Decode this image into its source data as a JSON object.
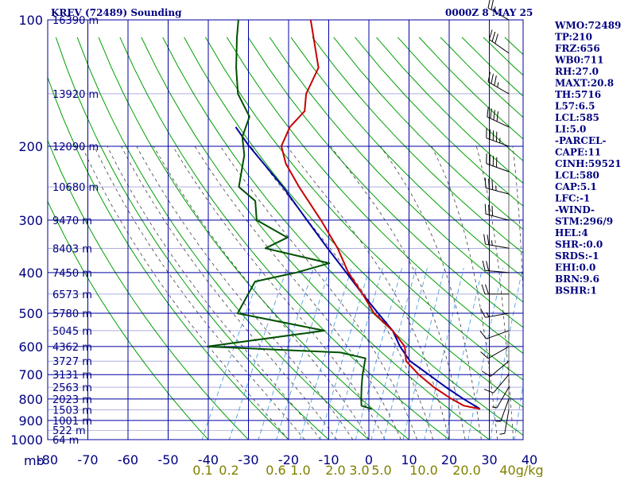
{
  "header": {
    "station": "KREV (72489) Sounding",
    "time": "0000Z  8 MAY 25"
  },
  "indices": [
    "WMO:72489",
    "TP:210",
    "FRZ:656",
    "WB0:711",
    "RH:27.0",
    "MAXT:20.8",
    "TH:5716",
    "L57:6.5",
    "LCL:585",
    "LI:5.0",
    "-PARCEL-",
    "CAPE:11",
    "CINH:59521",
    "LCL:580",
    "CAP:5.1",
    "LFC:-1",
    "-WIND-",
    "STM:296/9",
    "HEL:4",
    "SHR-:0.0",
    "SRDS:-1",
    "EHI:0.0",
    "BRN:9.6",
    "BSHR:1"
  ],
  "colors": {
    "grid": "#0000a0",
    "dry_adiabat": "#00a000",
    "moist_adiabat": "#404040",
    "mixing_ratio": "#3c96dc",
    "temperature": "#c80000",
    "dewpoint": "#005000",
    "parcel": "#0000a0",
    "labels": "#000080",
    "mixing_labels": "#808000"
  },
  "chart_data": {
    "type": "skew-t",
    "pressure_levels": [
      100,
      200,
      300,
      400,
      500,
      600,
      700,
      800,
      900,
      1000
    ],
    "pressure_tick_labels": [
      "100",
      "200",
      "300",
      "400",
      "500",
      "600",
      "700",
      "800",
      "900",
      "1000"
    ],
    "x_axis_unit_label": "mb",
    "temperature_ticks": [
      -80,
      -70,
      -60,
      -50,
      -40,
      -30,
      -20,
      -10,
      0,
      10,
      20,
      30,
      40
    ],
    "temperature_tick_labels": [
      "-80",
      "-70",
      "-60",
      "-50",
      "-40",
      "-30",
      "-20",
      "-10",
      "0",
      "10",
      "20",
      "30",
      "40"
    ],
    "mixing_ratio_labels": [
      "0.1",
      "0.2",
      "0.6",
      "1.0",
      "2.0",
      "3.0",
      "5.0",
      "10.0",
      "20.0",
      "40g/kg"
    ],
    "height_labels": [
      {
        "p": 100,
        "label": "16390 m"
      },
      {
        "p": 150,
        "label": "13920 m"
      },
      {
        "p": 200,
        "label": "12090 m"
      },
      {
        "p": 250,
        "label": "10680 m"
      },
      {
        "p": 300,
        "label": "9470 m"
      },
      {
        "p": 350,
        "label": "8403 m"
      },
      {
        "p": 400,
        "label": "7450 m"
      },
      {
        "p": 450,
        "label": "6573 m"
      },
      {
        "p": 500,
        "label": "5780 m"
      },
      {
        "p": 550,
        "label": "5045 m"
      },
      {
        "p": 600,
        "label": "4362 m"
      },
      {
        "p": 650,
        "label": "3727 m"
      },
      {
        "p": 700,
        "label": "3131 m"
      },
      {
        "p": 750,
        "label": "2563 m"
      },
      {
        "p": 800,
        "label": "2023 m"
      },
      {
        "p": 850,
        "label": "1503 m"
      },
      {
        "p": 900,
        "label": "1001 m"
      },
      {
        "p": 950,
        "label": "522 m"
      },
      {
        "p": 1000,
        "label": "64 m"
      }
    ],
    "temperature_profile": [
      {
        "p": 845,
        "t": 23.5
      },
      {
        "p": 830,
        "t": 19
      },
      {
        "p": 800,
        "t": 15
      },
      {
        "p": 750,
        "t": 9
      },
      {
        "p": 700,
        "t": 3.5
      },
      {
        "p": 650,
        "t": -1.5
      },
      {
        "p": 600,
        "t": -3.8
      },
      {
        "p": 550,
        "t": -9
      },
      {
        "p": 500,
        "t": -16
      },
      {
        "p": 450,
        "t": -21.5
      },
      {
        "p": 400,
        "t": -28
      },
      {
        "p": 350,
        "t": -34
      },
      {
        "p": 300,
        "t": -42
      },
      {
        "p": 250,
        "t": -52
      },
      {
        "p": 220,
        "t": -58.5
      },
      {
        "p": 200,
        "t": -62
      },
      {
        "p": 180,
        "t": -62.5
      },
      {
        "p": 165,
        "t": -61
      },
      {
        "p": 150,
        "t": -63
      },
      {
        "p": 130,
        "t": -63.5
      },
      {
        "p": 100,
        "t": -72
      }
    ],
    "dewpoint_profile": [
      {
        "p": 845,
        "t": -3.5
      },
      {
        "p": 830,
        "t": -6.5
      },
      {
        "p": 800,
        "t": -7.5
      },
      {
        "p": 750,
        "t": -9
      },
      {
        "p": 700,
        "t": -10.5
      },
      {
        "p": 640,
        "t": -12
      },
      {
        "p": 620,
        "t": -19
      },
      {
        "p": 600,
        "t": -53
      },
      {
        "p": 550,
        "t": -26
      },
      {
        "p": 500,
        "t": -50
      },
      {
        "p": 450,
        "t": -50
      },
      {
        "p": 420,
        "t": -50
      },
      {
        "p": 400,
        "t": -41
      },
      {
        "p": 380,
        "t": -34
      },
      {
        "p": 350,
        "t": -52
      },
      {
        "p": 330,
        "t": -48
      },
      {
        "p": 300,
        "t": -58
      },
      {
        "p": 270,
        "t": -61
      },
      {
        "p": 250,
        "t": -67
      },
      {
        "p": 210,
        "t": -70
      },
      {
        "p": 190,
        "t": -73
      },
      {
        "p": 170,
        "t": -74
      },
      {
        "p": 150,
        "t": -80
      },
      {
        "p": 130,
        "t": -84
      },
      {
        "p": 110,
        "t": -88
      },
      {
        "p": 100,
        "t": -90
      }
    ],
    "parcel_profile": [
      {
        "p": 845,
        "t": 23.5
      },
      {
        "p": 800,
        "t": 18
      },
      {
        "p": 750,
        "t": 12
      },
      {
        "p": 700,
        "t": 6
      },
      {
        "p": 650,
        "t": -0.5
      },
      {
        "p": 600,
        "t": -5
      },
      {
        "p": 550,
        "t": -9
      },
      {
        "p": 500,
        "t": -15
      },
      {
        "p": 450,
        "t": -21.5
      },
      {
        "p": 400,
        "t": -28.5
      },
      {
        "p": 350,
        "t": -36.5
      },
      {
        "p": 300,
        "t": -45.5
      },
      {
        "p": 250,
        "t": -56
      },
      {
        "p": 200,
        "t": -70
      },
      {
        "p": 180,
        "t": -76
      }
    ],
    "wind_profile": [
      {
        "p": 100,
        "dir": 300,
        "spd": 25
      },
      {
        "p": 120,
        "dir": 305,
        "spd": 30
      },
      {
        "p": 150,
        "dir": 300,
        "spd": 35
      },
      {
        "p": 180,
        "dir": 295,
        "spd": 40
      },
      {
        "p": 200,
        "dir": 290,
        "spd": 45
      },
      {
        "p": 230,
        "dir": 290,
        "spd": 40
      },
      {
        "p": 260,
        "dir": 285,
        "spd": 35
      },
      {
        "p": 300,
        "dir": 285,
        "spd": 30
      },
      {
        "p": 350,
        "dir": 280,
        "spd": 25
      },
      {
        "p": 400,
        "dir": 275,
        "spd": 20
      },
      {
        "p": 450,
        "dir": 270,
        "spd": 20
      },
      {
        "p": 500,
        "dir": 260,
        "spd": 15
      },
      {
        "p": 550,
        "dir": 250,
        "spd": 10
      },
      {
        "p": 600,
        "dir": 240,
        "spd": 10
      },
      {
        "p": 650,
        "dir": 230,
        "spd": 10
      },
      {
        "p": 700,
        "dir": 220,
        "spd": 10
      },
      {
        "p": 750,
        "dir": 210,
        "spd": 5
      },
      {
        "p": 800,
        "dir": 200,
        "spd": 5
      },
      {
        "p": 850,
        "dir": 190,
        "spd": 5
      }
    ]
  }
}
